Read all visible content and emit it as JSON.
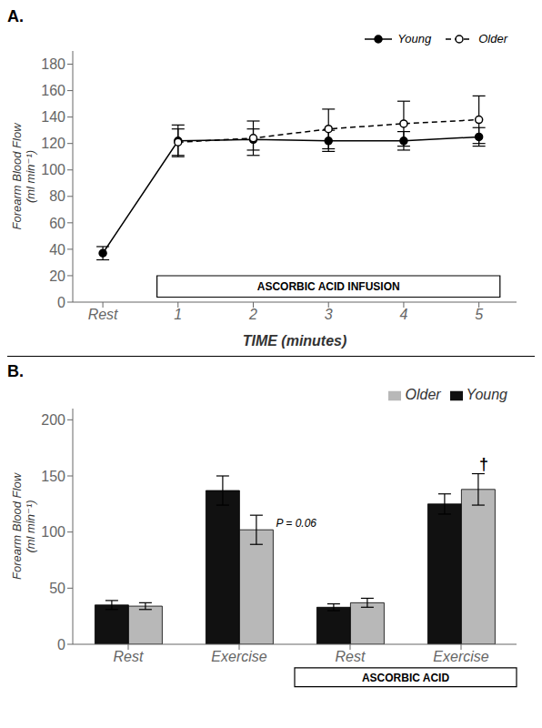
{
  "chart_data": [
    {
      "type": "line",
      "title": "A.",
      "x": [
        0,
        1,
        2,
        3,
        4,
        5
      ],
      "series": [
        {
          "name": "Young",
          "color": "#000000",
          "marker": "circle",
          "line_style": "solid",
          "values": [
            37,
            122,
            123,
            122,
            122,
            125
          ],
          "errors": [
            5,
            12,
            8,
            8,
            7,
            7
          ]
        },
        {
          "name": "Older",
          "color": "#000000",
          "marker": "open_circle",
          "line_style": "dashed",
          "values": [
            null,
            121,
            124,
            131,
            135,
            138
          ],
          "errors": [
            null,
            10,
            13,
            15,
            17,
            18
          ]
        }
      ],
      "x_label": "TIME (minutes)",
      "y_label": "Forearm Blood Flow\n(ml min⁻¹)",
      "xlim": [
        -0.4,
        5.5
      ],
      "xticks": [
        {
          "value": 0,
          "label": "Rest"
        },
        1,
        2,
        3,
        4,
        5
      ],
      "ylim": [
        0,
        190
      ],
      "yticks": [
        0,
        20,
        40,
        60,
        80,
        100,
        120,
        140,
        160,
        180
      ],
      "annotations": [
        "ASCORBIC ACID INFUSION"
      ],
      "legend": "upper right",
      "grid": false
    },
    {
      "type": "bar",
      "title": "B.",
      "categories": [
        "Rest",
        "Exercise",
        "Rest",
        "Exercise"
      ],
      "series": [
        {
          "name": "Young",
          "color": "#111111",
          "values": [
            35,
            137,
            33,
            125
          ],
          "errors": [
            4,
            13,
            3,
            9
          ]
        },
        {
          "name": "Older",
          "color": "#b8b8b8",
          "values": [
            34,
            102,
            37,
            138
          ],
          "errors": [
            3,
            13,
            4,
            14
          ]
        }
      ],
      "y_label": "Forearm Blood Flow\n(ml min⁻¹)",
      "ylim": [
        0,
        210
      ],
      "yticks": [
        0,
        50,
        100,
        150,
        200
      ],
      "annotations": [
        "P = 0.06",
        "†",
        "ASCORBIC ACID"
      ],
      "legend": "upper right",
      "grid": false
    }
  ]
}
